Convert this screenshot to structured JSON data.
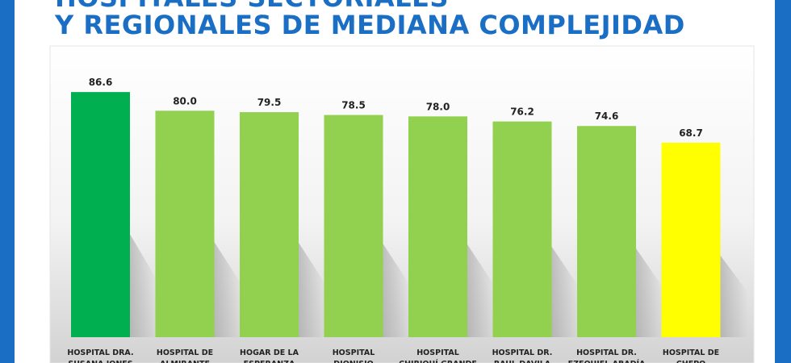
{
  "title": {
    "line1": "HOSPITALES SECTORIALES",
    "line2": "Y REGIONALES DE MEDIANA COMPLEJIDAD"
  },
  "colors": {
    "frame": "#1a6fc4",
    "title": "#1a6fc4",
    "top_bar": "#00b050",
    "mid_bar": "#92d050",
    "low_bar": "#ffff00"
  },
  "chart_data": {
    "type": "bar",
    "categories": [
      "HOSPITAL DRA. SUSANA JONES",
      "HOSPITAL DE ALMIRANTE",
      "HOGAR DE LA ESPERANZA",
      "HOSPITAL DIONISIO",
      "HOSPITAL CHIRIQUÍ GRANDE",
      "HOSPITAL DR. RAUL DAVILA",
      "HOSPITAL DR. EZEQUIEL ABADÍA",
      "HOSPITAL DE CHEPO"
    ],
    "category_lines": [
      [
        "HOSPITAL DRA.",
        "SUSANA JONES"
      ],
      [
        "HOSPITAL DE",
        "ALMIRANTE"
      ],
      [
        "HOGAR DE LA",
        "ESPERANZA"
      ],
      [
        "HOSPITAL",
        "DIONISIO"
      ],
      [
        "HOSPITAL",
        "CHIRIQUÍ GRANDE"
      ],
      [
        "HOSPITAL DR.",
        "RAUL DAVILA"
      ],
      [
        "HOSPITAL DR.",
        "EZEQUIEL ABADÍA"
      ],
      [
        "HOSPITAL DE",
        "CHEPO"
      ]
    ],
    "values": [
      86.6,
      80.0,
      79.5,
      78.5,
      78.0,
      76.2,
      74.6,
      68.7
    ],
    "value_labels": [
      "86.6",
      "80.0",
      "79.5",
      "78.5",
      "78.0",
      "76.2",
      "74.6",
      "68.7"
    ],
    "bar_colors": [
      "#00b050",
      "#92d050",
      "#92d050",
      "#92d050",
      "#92d050",
      "#92d050",
      "#92d050",
      "#ffff00"
    ],
    "ylim": [
      0,
      100
    ],
    "grid": false,
    "legend": "none"
  }
}
